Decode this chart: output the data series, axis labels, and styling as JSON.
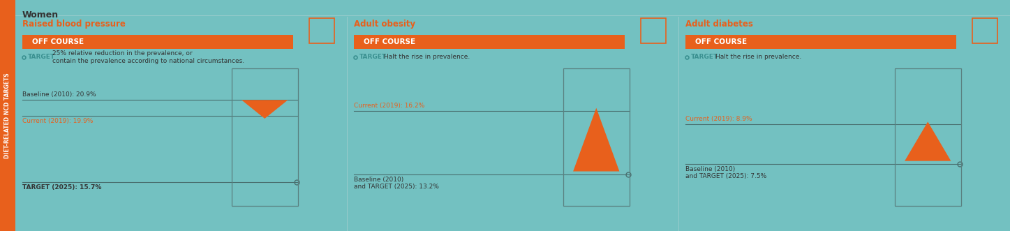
{
  "bg_color": "#73C1C1",
  "orange": "#E8601C",
  "line_color": "#5a8080",
  "border_color": "#5a8080",
  "text_dark": "#3d3d3d",
  "text_orange": "#E8601C",
  "teal_text": "#3a9a9a",
  "sidebar_color": "#E8601C",
  "sidebar_text": "DIET-RELATED NCD TARGETS",
  "title": "Women",
  "figw": 14.47,
  "figh": 3.31,
  "dpi": 100,
  "panels": [
    {
      "title": "Raised blood pressure",
      "status": "OFF COURSE",
      "target_desc": "25% relative reduction in the prevalence, or\ncontain the prevalence according to national circumstances.",
      "baseline_label": "Baseline (2010): 20.9%",
      "current_label": "Current (2019): 19.9%",
      "target_label": "TARGET (2025): 15.7%",
      "baseline_val": 20.9,
      "current_val": 19.9,
      "target_val": 15.7,
      "arrow_direction": "down",
      "chart_type": "blood_pressure",
      "current_label_above": false
    },
    {
      "title": "Adult obesity",
      "status": "OFF COURSE",
      "target_desc": "Halt the rise in prevalence.",
      "baseline_label": "Baseline (2010)\nand TARGET (2025): 13.2%",
      "current_label": "Current (2019): 16.2%",
      "target_label": null,
      "baseline_val": 13.2,
      "current_val": 16.2,
      "target_val": 13.2,
      "arrow_direction": "up",
      "chart_type": "rise",
      "current_label_above": true
    },
    {
      "title": "Adult diabetes",
      "status": "OFF COURSE",
      "target_desc": "Halt the rise in prevalence.",
      "baseline_label": "Baseline (2010)\nand TARGET (2025): 7.5%",
      "current_label": "Current (2019): 8.9%",
      "target_label": null,
      "baseline_val": 7.5,
      "current_val": 8.9,
      "target_val": 7.5,
      "arrow_direction": "up",
      "chart_type": "rise",
      "current_label_above": true
    }
  ]
}
